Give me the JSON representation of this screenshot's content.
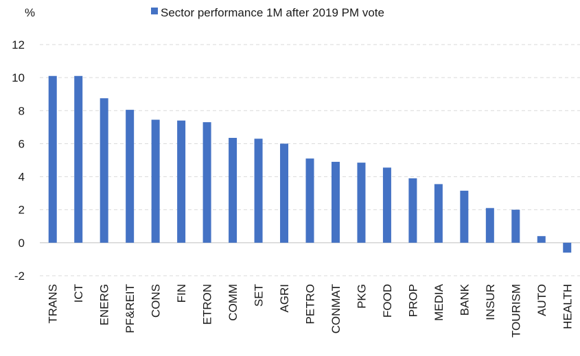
{
  "chart_data": {
    "type": "bar",
    "unit_label": "%",
    "legend": {
      "label": "Sector performance 1M after 2019 PM vote",
      "placement": "top"
    },
    "categories": [
      "TRANS",
      "ICT",
      "ENERG",
      "PF&REIT",
      "CONS",
      "FIN",
      "ETRON",
      "COMM",
      "SET",
      "AGRI",
      "PETRO",
      "CONMAT",
      "PKG",
      "FOOD",
      "PROP",
      "MEDIA",
      "BANK",
      "INSUR",
      "TOURISM",
      "AUTO",
      "HEALTH"
    ],
    "series": [
      {
        "name": "Sector performance 1M after 2019 PM vote",
        "values": [
          10.1,
          10.1,
          8.75,
          8.05,
          7.45,
          7.4,
          7.3,
          6.35,
          6.3,
          6.0,
          5.1,
          4.9,
          4.85,
          4.55,
          3.9,
          3.55,
          3.15,
          2.1,
          2.0,
          0.4,
          -0.6
        ]
      }
    ],
    "ylim": [
      -2,
      12
    ],
    "yticks": [
      -2,
      0,
      2,
      4,
      6,
      8,
      10,
      12
    ],
    "grid": true,
    "colors": {
      "bar": "#4472C4",
      "grid": "#D9D9D9",
      "axis": "#BFBFBF"
    }
  }
}
